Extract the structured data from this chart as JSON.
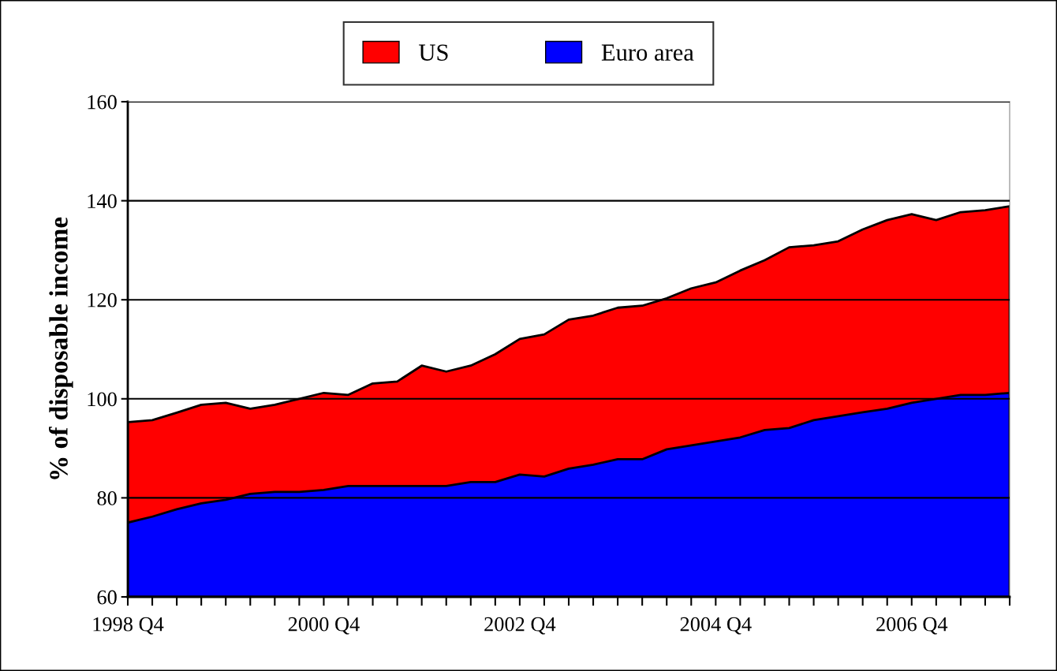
{
  "chart_data": {
    "type": "area",
    "ylabel": "% of disposable income",
    "categories": [
      "1998 Q4",
      null,
      null,
      null,
      null,
      null,
      null,
      null,
      "2000 Q4",
      null,
      null,
      null,
      null,
      null,
      null,
      null,
      "2002 Q4",
      null,
      null,
      null,
      null,
      null,
      null,
      null,
      "2004 Q4",
      null,
      null,
      null,
      null,
      null,
      null,
      null,
      "2006 Q4",
      null,
      null,
      null,
      null
    ],
    "series": [
      {
        "name": "US",
        "color": "#ff0000",
        "values": [
          95.3,
          95.7,
          97.2,
          98.8,
          99.2,
          98.0,
          98.8,
          100.0,
          101.2,
          100.8,
          103.1,
          103.5,
          106.7,
          105.5,
          106.7,
          109.0,
          112.1,
          113.0,
          116.0,
          116.8,
          118.4,
          118.8,
          120.3,
          122.3,
          123.5,
          125.9,
          128.0,
          130.6,
          131.0,
          131.8,
          134.2,
          136.1,
          137.3,
          136.1,
          137.7,
          138.1,
          138.9
        ]
      },
      {
        "name": "Euro area",
        "color": "#0000ff",
        "values": [
          75.0,
          76.2,
          77.7,
          78.9,
          79.6,
          80.8,
          81.2,
          81.2,
          81.6,
          82.4,
          82.4,
          82.4,
          82.4,
          82.4,
          83.2,
          83.2,
          84.7,
          84.3,
          85.9,
          86.7,
          87.8,
          87.8,
          89.8,
          90.6,
          91.4,
          92.2,
          93.7,
          94.1,
          95.7,
          96.5,
          97.3,
          98.0,
          99.2,
          100.0,
          100.8,
          100.8,
          101.2
        ]
      }
    ],
    "ylim": [
      60,
      160
    ],
    "yticks": [
      60,
      80,
      100,
      120,
      140,
      160
    ],
    "grid": "y",
    "legend": "top"
  }
}
